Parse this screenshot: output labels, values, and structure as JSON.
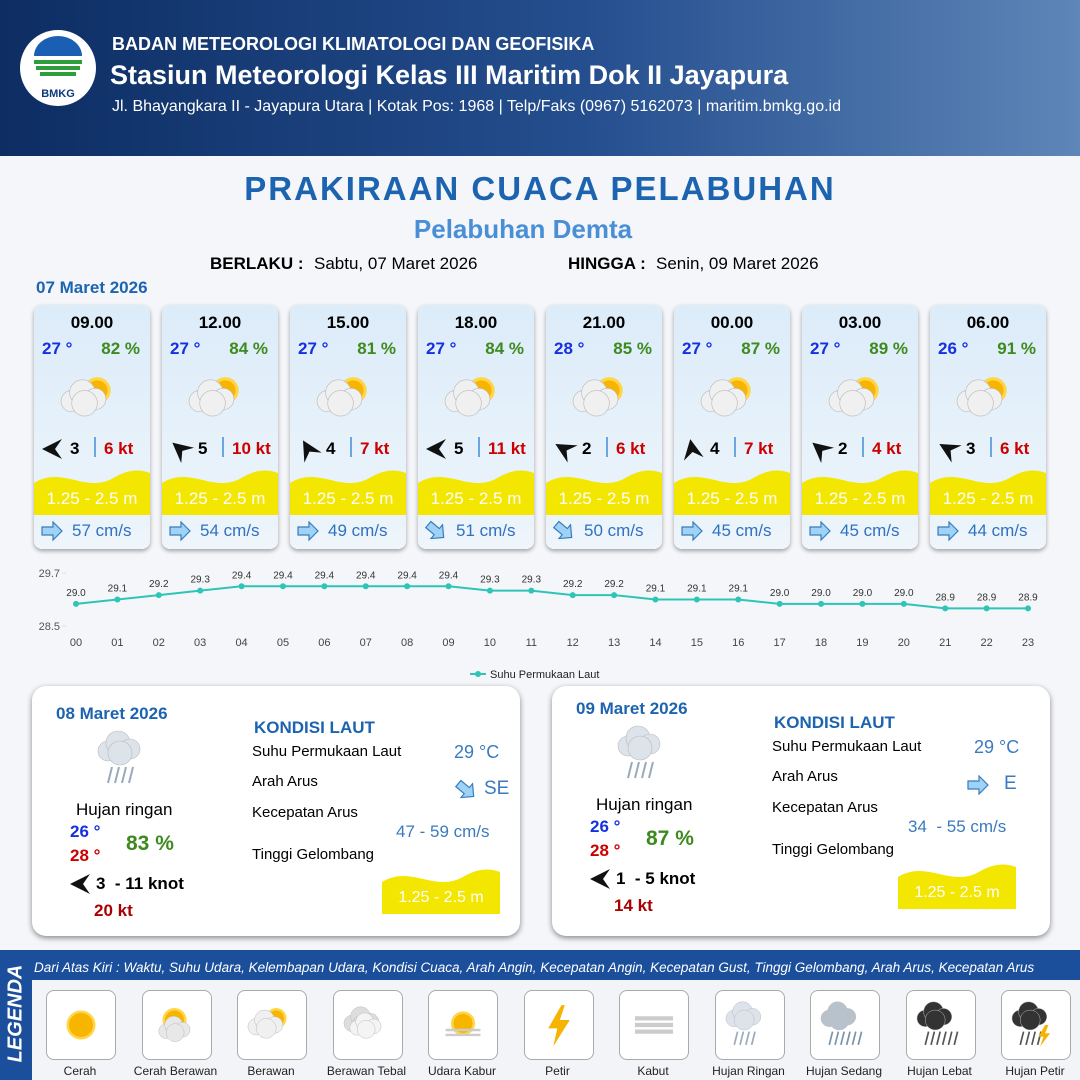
{
  "header": {
    "logo_text": "BMKG",
    "agency": "BADAN METEOROLOGI KLIMATOLOGI DAN GEOFISIKA",
    "station": "Stasiun Meteorologi Kelas III Maritim Dok II Jayapura",
    "address": "Jl. Bhayangkara II - Jayapura Utara | Kotak Pos: 1968 | Telp/Faks (0967) 5162073 | maritim.bmkg.go.id"
  },
  "title": "PRAKIRAAN CUACA PELABUHAN",
  "subtitle": "Pelabuhan Demta",
  "validity": {
    "from_label": "BERLAKU :",
    "from": "Sabtu, 07 Maret 2026",
    "until_label": "HINGGA :",
    "until": "Senin, 09 Maret 2026"
  },
  "day1": {
    "date": "07 Maret 2026",
    "slots": [
      {
        "time": "09.00",
        "temp": "27 °",
        "humidity": "82 %",
        "wind": "3",
        "gust": "6 kt",
        "wave": "1.25 - 2.5 m",
        "current": "57 cm/s"
      },
      {
        "time": "12.00",
        "temp": "27 °",
        "humidity": "84 %",
        "wind": "5",
        "gust": "10 kt",
        "wave": "1.25 - 2.5 m",
        "current": "54 cm/s"
      },
      {
        "time": "15.00",
        "temp": "27 °",
        "humidity": "81 %",
        "wind": "4",
        "gust": "7 kt",
        "wave": "1.25 - 2.5 m",
        "current": "49 cm/s"
      },
      {
        "time": "18.00",
        "temp": "27 °",
        "humidity": "84 %",
        "wind": "5",
        "gust": "11 kt",
        "wave": "1.25 - 2.5 m",
        "current": "51 cm/s"
      },
      {
        "time": "21.00",
        "temp": "28 °",
        "humidity": "85 %",
        "wind": "2",
        "gust": "6 kt",
        "wave": "1.25 - 2.5 m",
        "current": "50 cm/s"
      },
      {
        "time": "00.00",
        "temp": "27 °",
        "humidity": "87 %",
        "wind": "4",
        "gust": "7 kt",
        "wave": "1.25 - 2.5 m",
        "current": "45 cm/s"
      },
      {
        "time": "03.00",
        "temp": "27 °",
        "humidity": "89 %",
        "wind": "2",
        "gust": "4 kt",
        "wave": "1.25 - 2.5 m",
        "current": "45 cm/s"
      },
      {
        "time": "06.00",
        "temp": "26 °",
        "humidity": "91 %",
        "wind": "3",
        "gust": "6 kt",
        "wave": "1.25 - 2.5 m",
        "current": "44 cm/s"
      }
    ]
  },
  "chart_data": {
    "type": "line",
    "categories": [
      "00",
      "01",
      "02",
      "03",
      "04",
      "05",
      "06",
      "07",
      "08",
      "09",
      "10",
      "11",
      "12",
      "13",
      "14",
      "15",
      "16",
      "17",
      "18",
      "19",
      "20",
      "21",
      "22",
      "23"
    ],
    "series": [
      {
        "name": "Suhu Permukaan Laut",
        "color": "#2ec4b6",
        "values": [
          29.0,
          29.1,
          29.2,
          29.3,
          29.4,
          29.4,
          29.4,
          29.4,
          29.4,
          29.4,
          29.3,
          29.3,
          29.2,
          29.2,
          29.1,
          29.1,
          29.1,
          29.0,
          29.0,
          29.0,
          29.0,
          28.9,
          28.9,
          28.9
        ],
        "value_labels": [
          "29.0",
          "29.1",
          "29.2",
          "29.3",
          "29.4",
          "29.4",
          "29.4",
          "29.4",
          "29.4",
          "29.4",
          "29.3",
          "29.3",
          "29.2",
          "29.2",
          "29.1",
          "29.1",
          "29.1",
          "29.0",
          "29.0",
          "29.0",
          "29.0",
          "28.9",
          "28.9",
          "28.9"
        ]
      }
    ],
    "ylim": [
      28.5,
      29.7
    ],
    "yticks": [
      28.5,
      29.7
    ]
  },
  "days": [
    {
      "date": "08 Maret 2026",
      "condition": "Hujan ringan",
      "temp_min": "26 °",
      "temp_max": "28 °",
      "humidity": "83 %",
      "wind": "3  - 11 knot",
      "gust": "20 kt",
      "sea_title": "KONDISI LAUT",
      "sst_label": "Suhu Permukaan Laut",
      "sst": "29 °C",
      "dir_label": "Arah Arus",
      "dir": "SE",
      "speed_label": "Kecepatan Arus",
      "speed": "47 - 59 cm/s",
      "wave_label": "Tinggi Gelombang",
      "wave": "1.25 - 2.5 m"
    },
    {
      "date": "09 Maret 2026",
      "condition": "Hujan ringan",
      "temp_min": "26 °",
      "temp_max": "28 °",
      "humidity": "87 %",
      "wind": "1  - 5 knot",
      "gust": "14 kt",
      "sea_title": "KONDISI LAUT",
      "sst_label": "Suhu Permukaan Laut",
      "sst": "29 °C",
      "dir_label": "Arah Arus",
      "dir": "E",
      "speed_label": "Kecepatan Arus",
      "speed": "34  - 55 cm/s",
      "wave_label": "Tinggi Gelombang",
      "wave": "1.25 - 2.5 m"
    }
  ],
  "legend": {
    "title": "LEGENDA",
    "description": "Dari Atas Kiri : Waktu, Suhu Udara, Kelembapan Udara, Kondisi Cuaca, Arah Angin, Kecepatan Angin, Kecepatan Gust, Tinggi Gelombang, Arah Arus, Kecepatan Arus",
    "items": [
      "Cerah",
      "Cerah Berawan",
      "Berawan",
      "Berawan Tebal",
      "Udara Kabur",
      "Petir",
      "Kabut",
      "Hujan Ringan",
      "Hujan Sedang",
      "Hujan Lebat",
      "Hujan Petir"
    ]
  }
}
